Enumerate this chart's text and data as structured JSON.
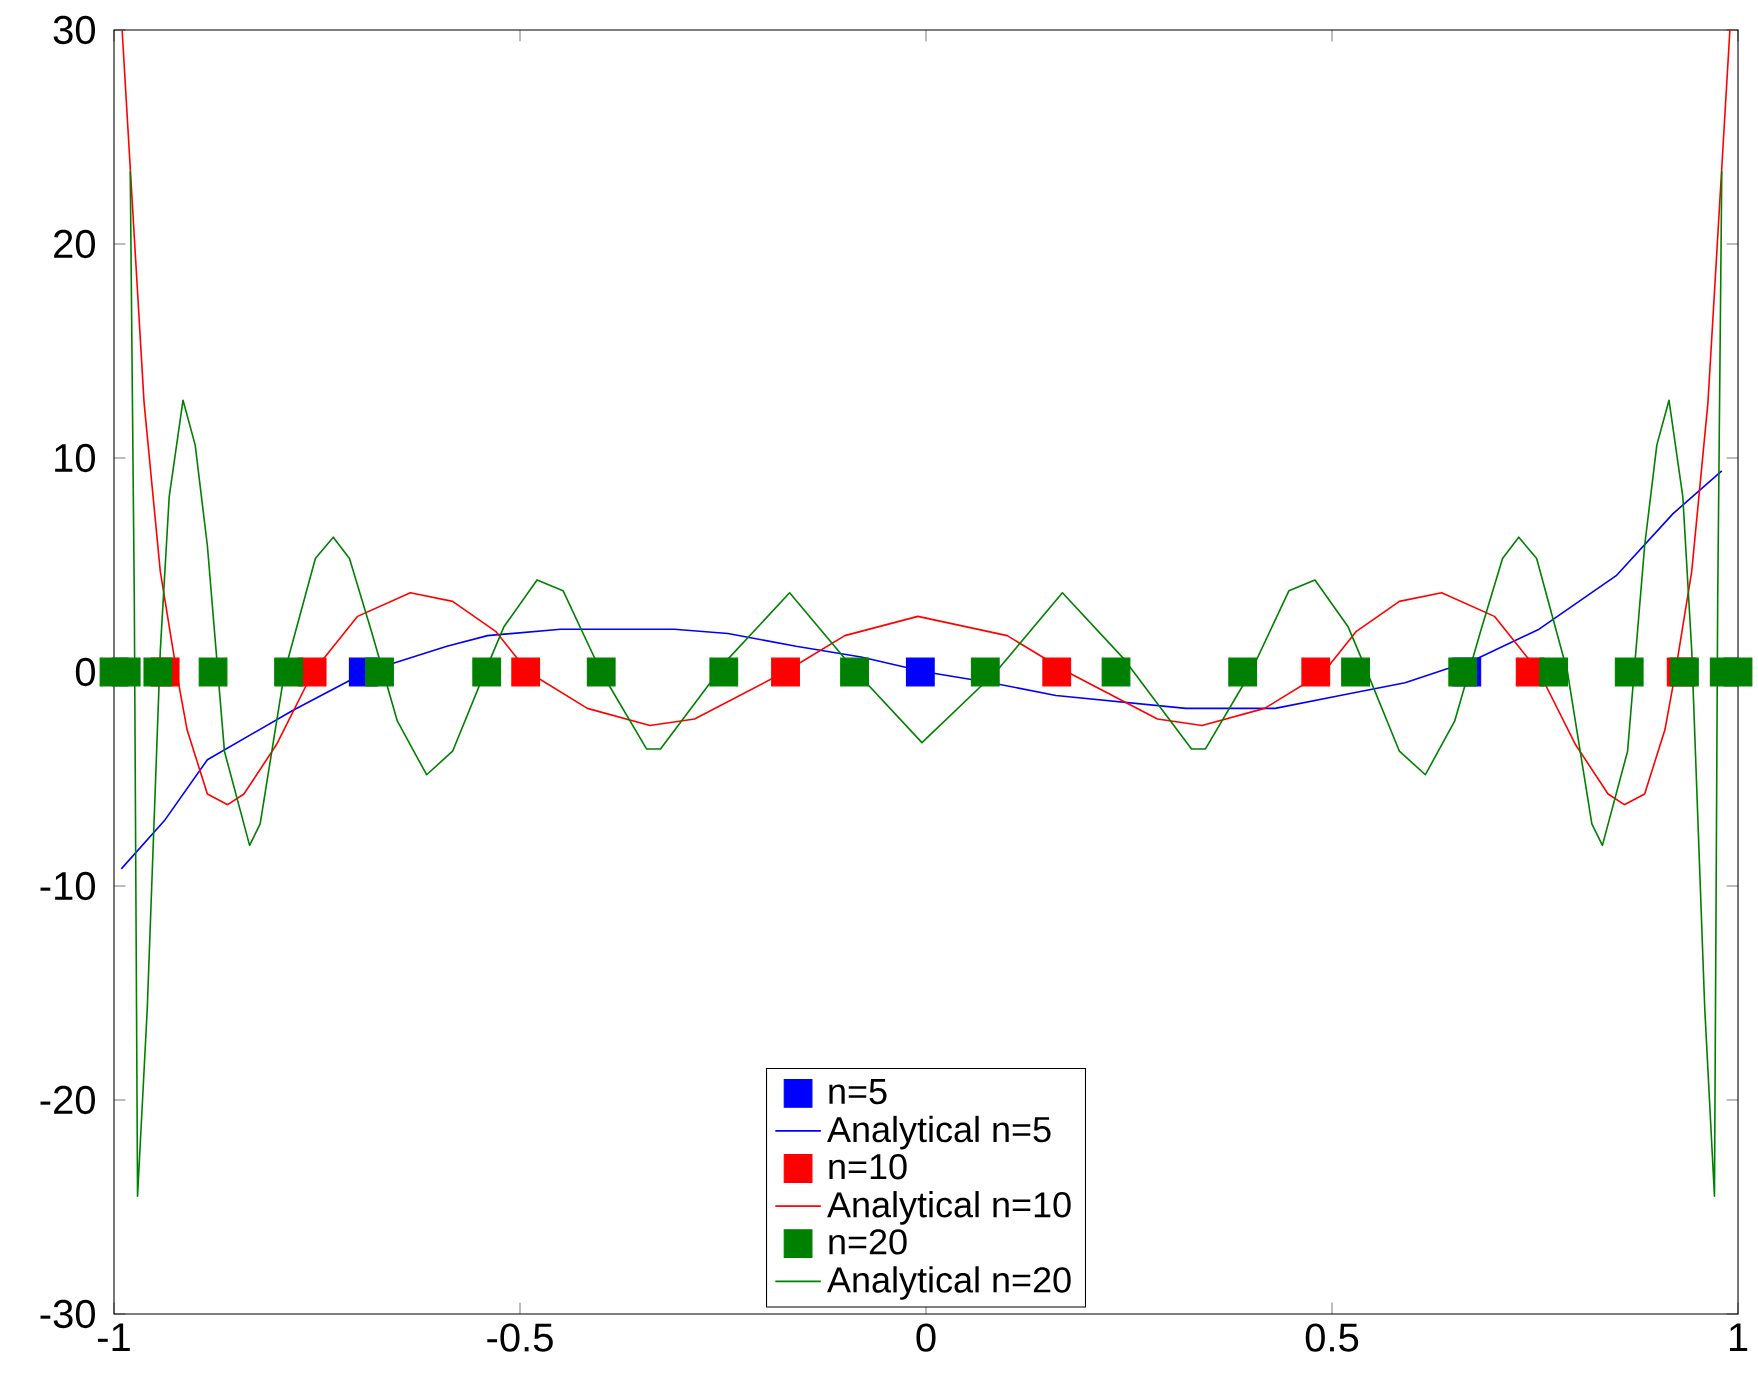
{
  "chart_data": {
    "type": "line",
    "xlim": [
      -1,
      1
    ],
    "ylim": [
      -30,
      30
    ],
    "xticks": [
      -1,
      -0.5,
      0,
      0.5,
      1
    ],
    "yticks": [
      -30,
      -20,
      -10,
      0,
      10,
      20,
      30
    ],
    "grid": false,
    "legend": "bottom",
    "series": [
      {
        "name": "n=5",
        "type": "scatter",
        "marker": "square",
        "color": "#0000ff",
        "x": [
          -0.693,
          -0.007,
          0.666
        ],
        "values": [
          0,
          0,
          0
        ]
      },
      {
        "name": "Analytical n=5",
        "color": "#0000ff",
        "x": [
          -0.991,
          -0.937,
          -0.885,
          -0.78,
          -0.69,
          -0.59,
          -0.54,
          -0.45,
          -0.41,
          -0.31,
          -0.244,
          -0.16,
          -0.08,
          0,
          0.08,
          0.16,
          0.24,
          0.32,
          0.43,
          0.51,
          0.59,
          0.677,
          0.755,
          0.85,
          0.92,
          0.98
        ],
        "values": [
          -9.2,
          -6.9,
          -4.1,
          -1.8,
          0,
          1.2,
          1.7,
          2.0,
          2.0,
          2.0,
          1.8,
          1.2,
          0.7,
          0,
          -0.5,
          -1.1,
          -1.4,
          -1.7,
          -1.7,
          -1.1,
          -0.5,
          0.6,
          2.0,
          4.5,
          7.4,
          9.4
        ]
      },
      {
        "name": "n=10",
        "type": "scatter",
        "marker": "square",
        "color": "#ff0000",
        "x": [
          -0.937,
          -0.756,
          -0.493,
          -0.173,
          0.161,
          0.48,
          0.744,
          0.93
        ],
        "values": [
          0,
          0,
          0,
          0,
          0,
          0,
          0,
          0
        ]
      },
      {
        "name": "Analytical n=10",
        "color": "#ff0000",
        "x": [
          -0.99,
          -0.963,
          -0.943,
          -0.922,
          -0.91,
          -0.885,
          -0.86,
          -0.84,
          -0.8,
          -0.755,
          -0.7,
          -0.635,
          -0.583,
          -0.53,
          -0.49,
          -0.417,
          -0.34,
          -0.285,
          -0.174,
          -0.1,
          -0.01,
          0.1,
          0.174,
          0.285,
          0.34,
          0.417,
          0.49,
          0.53,
          0.583,
          0.635,
          0.7,
          0.755,
          0.8,
          0.84,
          0.86,
          0.885,
          0.91,
          0.922,
          0.943,
          0.963,
          0.99
        ],
        "values": [
          30,
          12.6,
          4.7,
          -0.2,
          -2.7,
          -5.7,
          -6.2,
          -5.7,
          -3.4,
          0,
          2.6,
          3.7,
          3.3,
          1.9,
          0,
          -1.7,
          -2.5,
          -2.2,
          0,
          1.7,
          2.6,
          1.7,
          0,
          -2.2,
          -2.5,
          -1.7,
          0,
          1.9,
          3.3,
          3.7,
          2.6,
          0,
          -3.4,
          -5.7,
          -6.2,
          -5.7,
          -2.7,
          -0.2,
          4.7,
          12.6,
          30
        ]
      },
      {
        "name": "n=20",
        "type": "scatter",
        "marker": "square",
        "color": "#008000",
        "x": [
          -1,
          -0.985,
          -0.946,
          -0.878,
          -0.785,
          -0.673,
          -0.541,
          -0.4,
          -0.249,
          -0.088,
          0.073,
          0.234,
          0.39,
          0.529,
          0.661,
          0.773,
          0.866,
          0.934,
          0.983,
          1
        ],
        "values": [
          0,
          0,
          0,
          0,
          0,
          0,
          0,
          0,
          0,
          0,
          0,
          0,
          0,
          0,
          0,
          0,
          0,
          0,
          0,
          0
        ]
      },
      {
        "name": "Analytical n=20",
        "color": "#008000",
        "x": [
          -0.98,
          -0.975,
          -0.971,
          -0.959,
          -0.943,
          -0.932,
          -0.915,
          -0.9,
          -0.885,
          -0.864,
          -0.833,
          -0.82,
          -0.79,
          -0.752,
          -0.73,
          -0.71,
          -0.683,
          -0.651,
          -0.615,
          -0.583,
          -0.54,
          -0.52,
          -0.479,
          -0.447,
          -0.4,
          -0.344,
          -0.327,
          -0.244,
          -0.168,
          -0.086,
          -0.005,
          0.086,
          0.168,
          0.244,
          0.327,
          0.344,
          0.4,
          0.447,
          0.479,
          0.52,
          0.54,
          0.583,
          0.615,
          0.651,
          0.683,
          0.71,
          0.73,
          0.752,
          0.79,
          0.82,
          0.833,
          0.864,
          0.885,
          0.9,
          0.915,
          0.932,
          0.943,
          0.959,
          0.971,
          0.975,
          0.98
        ],
        "values": [
          23.4,
          3.4,
          -24.5,
          -15.7,
          1.0,
          8.2,
          12.7,
          10.6,
          5.9,
          -3.7,
          -8.1,
          -7.1,
          0,
          5.3,
          6.3,
          5.3,
          1.9,
          -2.3,
          -4.8,
          -3.7,
          0.3,
          2.1,
          4.3,
          3.8,
          0,
          -3.6,
          -3.6,
          0.6,
          3.7,
          0,
          -3.3,
          0,
          3.7,
          0.6,
          -3.6,
          -3.6,
          0,
          3.8,
          4.3,
          2.1,
          0.3,
          -3.7,
          -4.8,
          -2.3,
          1.9,
          5.3,
          6.3,
          5.3,
          0,
          -7.1,
          -8.1,
          -3.7,
          5.9,
          10.6,
          12.7,
          8.2,
          1.0,
          -15.7,
          -24.5,
          3.4,
          23.4
        ]
      }
    ]
  }
}
